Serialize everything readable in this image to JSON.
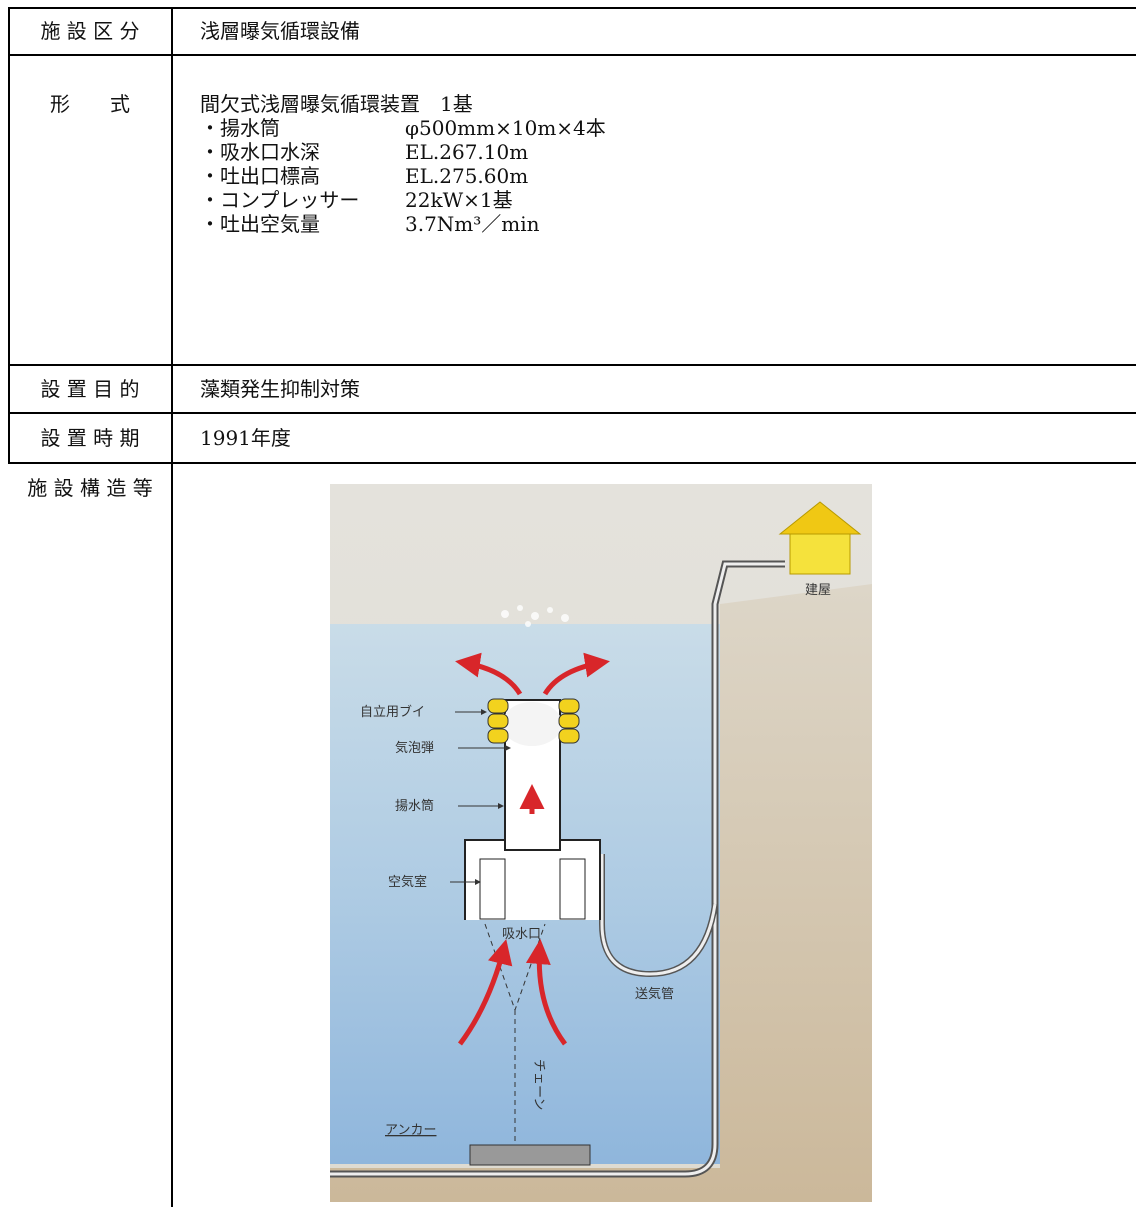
{
  "table": {
    "rows": [
      {
        "label": "施 設 区 分",
        "text": "浅層曝気循環設備"
      },
      {
        "label": "形　　式",
        "text": "間欠式浅層曝気循環装置　1基",
        "items": [
          {
            "name": "・揚水筒",
            "value": "φ500mm×10m×4本"
          },
          {
            "name": "・吸水口水深",
            "value": "EL.267.10m"
          },
          {
            "name": "・吐出口標高",
            "value": "EL.275.60m"
          },
          {
            "name": "・コンプレッサー",
            "value": "22kW×1基"
          },
          {
            "name": "・吐出空気量",
            "value": "3.7Nm³／min"
          }
        ]
      },
      {
        "label": "設 置 目 的",
        "text": "藻類発生抑制対策"
      },
      {
        "label": "設 置 時 期",
        "text": "1991年度"
      },
      {
        "label": "施 設 構 造 等"
      }
    ]
  },
  "diagram": {
    "labels": {
      "buoy": "自立用ブイ",
      "bubble": "気泡弾",
      "tube": "揚水筒",
      "chamber": "空気室",
      "intake": "吸水口",
      "pipe": "送気管",
      "chain": "チェーン",
      "anchor": "アンカー",
      "building": "建屋"
    }
  }
}
